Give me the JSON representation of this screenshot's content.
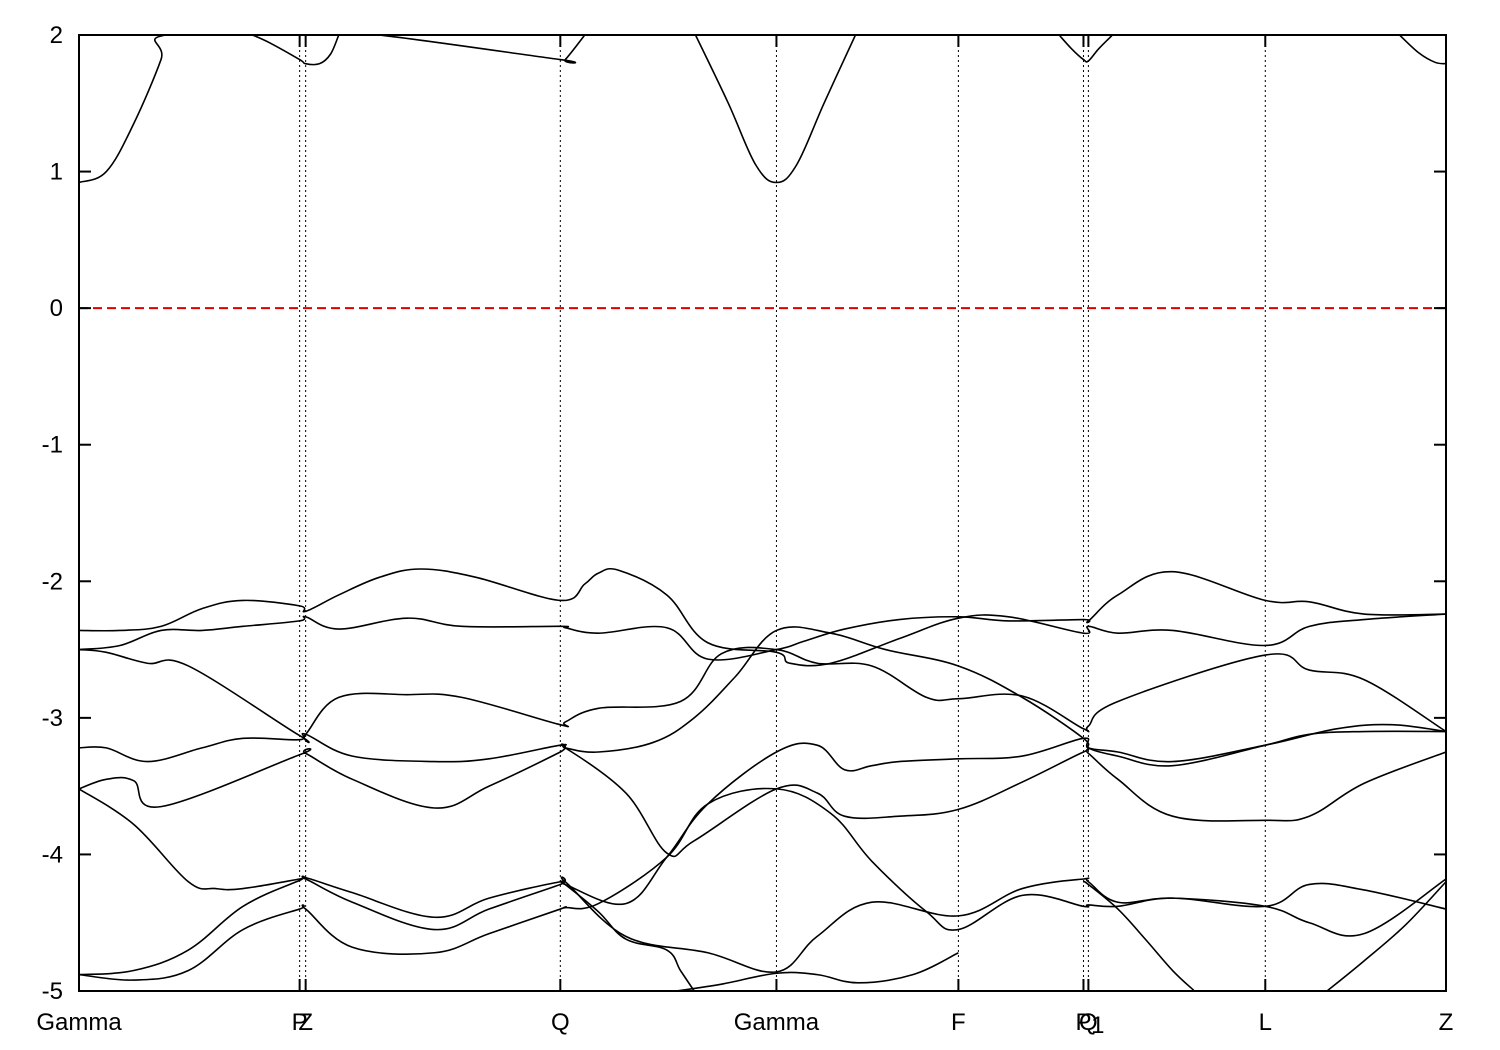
{
  "chart_data": {
    "type": "line",
    "title": "",
    "xlabel": "",
    "ylabel": "",
    "ylim": [
      -5,
      2
    ],
    "xlim": [
      0,
      1
    ],
    "grid": false,
    "yticks": [
      {
        "value": 2,
        "label": "2"
      },
      {
        "value": 1,
        "label": "1"
      },
      {
        "value": 0,
        "label": "0"
      },
      {
        "value": -1,
        "label": "-1"
      },
      {
        "value": -2,
        "label": "-2"
      },
      {
        "value": -3,
        "label": "-3"
      },
      {
        "value": -4,
        "label": "-4"
      },
      {
        "value": -5,
        "label": "-5"
      }
    ],
    "kpoints": [
      {
        "x": 0.0,
        "label": "Gamma"
      },
      {
        "x": 0.1614,
        "label": "P"
      },
      {
        "x": 0.1658,
        "label": "Z"
      },
      {
        "x": 0.3521,
        "label": "Q"
      },
      {
        "x": 0.5102,
        "label": "Gamma"
      },
      {
        "x": 0.6433,
        "label": "F"
      },
      {
        "x": 0.7348,
        "label": "P"
      },
      {
        "x": 0.7384,
        "label": "Q"
      },
      {
        "x": 0.7409,
        "label": "1"
      },
      {
        "x": 0.8678,
        "label": "L"
      },
      {
        "x": 1.0,
        "label": "Z"
      }
    ],
    "reference_line": {
      "y": 0,
      "color": "#dd0000",
      "style": "dashed"
    },
    "line_color": "#000000",
    "series": [
      {
        "x": [
          0,
          0.02,
          0.04,
          0.06,
          0.0635,
          0.1614,
          0.1658,
          0.19,
          0.22,
          0.3521,
          0.3557,
          0.37
        ],
        "y": [
          0.92,
          1.0,
          1.35,
          1.82,
          2.0,
          2.0,
          2.0,
          2.0,
          2.0,
          1.82,
          1.82,
          2.0
        ]
      },
      {
        "x": [
          0.127,
          0.14,
          0.1614,
          0.1658,
          0.176,
          0.184,
          0.19
        ],
        "y": [
          2.0,
          1.94,
          1.82,
          1.79,
          1.79,
          1.86,
          2.0
        ]
      },
      {
        "x": [
          0.451,
          0.475,
          0.495,
          0.5102,
          0.525,
          0.545,
          0.568
        ],
        "y": [
          2.0,
          1.5,
          1.05,
          0.92,
          1.05,
          1.5,
          2.0
        ]
      },
      {
        "x": [
          0.717,
          0.726,
          0.7348,
          0.7384,
          0.746,
          0.756
        ],
        "y": [
          2.0,
          1.9,
          1.82,
          1.81,
          1.9,
          2.0
        ]
      },
      {
        "x": [
          0.966,
          0.98,
          0.992,
          1.0
        ],
        "y": [
          2.0,
          1.87,
          1.8,
          1.79
        ]
      },
      {
        "x": [
          0,
          0.03,
          0.06,
          0.09,
          0.12,
          0.1614,
          0.1658,
          0.19,
          0.22,
          0.25,
          0.29,
          0.3521,
          0.37,
          0.38,
          0.395,
          0.43,
          0.46,
          0.5102,
          0.52,
          0.55,
          0.6,
          0.6433,
          0.68,
          0.7348,
          0.7384,
          0.76,
          0.8,
          0.8678,
          0.9,
          0.94,
          1.0
        ],
        "y": [
          -2.36,
          -2.36,
          -2.33,
          -2.2,
          -2.14,
          -2.18,
          -2.22,
          -2.1,
          -1.97,
          -1.91,
          -1.97,
          -2.14,
          -2.02,
          -1.94,
          -1.92,
          -2.1,
          -2.45,
          -2.52,
          -2.6,
          -2.6,
          -2.42,
          -2.27,
          -2.26,
          -2.38,
          -2.33,
          -2.38,
          -2.36,
          -2.47,
          -2.33,
          -2.28,
          -2.24
        ]
      },
      {
        "x": [
          0,
          0.03,
          0.06,
          0.09,
          0.12,
          0.1614,
          0.1658,
          0.19,
          0.24,
          0.28,
          0.3521,
          0.3557,
          0.38,
          0.43,
          0.46,
          0.5102,
          0.53,
          0.56,
          0.6,
          0.6433,
          0.68,
          0.7348,
          0.7384,
          0.76,
          0.8,
          0.8678,
          0.9,
          0.94,
          1.0
        ],
        "y": [
          -2.5,
          -2.47,
          -2.36,
          -2.36,
          -2.33,
          -2.29,
          -2.26,
          -2.35,
          -2.27,
          -2.33,
          -2.33,
          -2.34,
          -2.38,
          -2.34,
          -2.57,
          -2.5,
          -2.44,
          -2.35,
          -2.28,
          -2.26,
          -2.29,
          -2.28,
          -2.29,
          -2.1,
          -1.93,
          -2.14,
          -2.15,
          -2.24,
          -2.24
        ]
      },
      {
        "x": [
          0,
          0.02,
          0.05,
          0.08,
          0.1614,
          0.1658,
          0.19,
          0.24,
          0.28,
          0.3521,
          0.3557,
          0.38,
          0.44,
          0.47,
          0.5102,
          0.54,
          0.58,
          0.62,
          0.6433,
          0.69,
          0.7348,
          0.7384,
          0.76,
          0.8678,
          0.9,
          0.94,
          1.0
        ],
        "y": [
          -2.5,
          -2.52,
          -2.6,
          -2.62,
          -3.13,
          -3.12,
          -2.85,
          -2.83,
          -2.85,
          -3.05,
          -3.03,
          -2.93,
          -2.88,
          -2.53,
          -2.5,
          -2.6,
          -2.62,
          -2.85,
          -2.86,
          -2.84,
          -3.08,
          -3.06,
          -2.88,
          -2.54,
          -2.65,
          -2.72,
          -3.1
        ]
      },
      {
        "x": [
          0,
          0.02,
          0.05,
          0.09,
          0.12,
          0.1614,
          0.1658,
          0.2,
          0.26,
          0.3,
          0.3521,
          0.3557,
          0.38,
          0.42,
          0.45,
          0.48,
          0.5102,
          0.55,
          0.59,
          0.6433,
          0.69,
          0.7348,
          0.7384,
          0.76,
          0.8,
          0.8678,
          0.92,
          0.96,
          1.0
        ],
        "y": [
          -3.22,
          -3.22,
          -3.32,
          -3.22,
          -3.15,
          -3.16,
          -3.12,
          -3.28,
          -3.32,
          -3.3,
          -3.2,
          -3.22,
          -3.25,
          -3.18,
          -3.0,
          -2.7,
          -2.36,
          -2.38,
          -2.5,
          -2.62,
          -2.85,
          -3.15,
          -3.22,
          -3.25,
          -3.32,
          -3.2,
          -3.08,
          -3.05,
          -3.1
        ]
      },
      {
        "x": [
          0,
          0.02,
          0.04,
          0.06,
          0.1614,
          0.1658,
          0.2,
          0.26,
          0.3,
          0.3521,
          0.3557,
          0.4,
          0.43,
          0.45,
          0.5102,
          0.54,
          0.56,
          0.6,
          0.6433,
          0.69,
          0.7348,
          0.7384,
          0.76,
          0.8,
          0.8678,
          0.9,
          0.94,
          1.0
        ],
        "y": [
          -3.52,
          -3.45,
          -3.46,
          -3.65,
          -3.27,
          -3.26,
          -3.45,
          -3.66,
          -3.5,
          -3.25,
          -3.22,
          -3.55,
          -3.99,
          -3.9,
          -3.52,
          -3.55,
          -3.72,
          -3.72,
          -3.67,
          -3.47,
          -3.25,
          -3.26,
          -3.45,
          -3.72,
          -3.75,
          -3.72,
          -3.48,
          -3.25
        ]
      },
      {
        "x": [
          0,
          0.04,
          0.08,
          0.1,
          0.12,
          0.1614,
          0.1658,
          0.2,
          0.26,
          0.3,
          0.3521,
          0.3557,
          0.4,
          0.43,
          0.46,
          0.5102,
          0.54,
          0.56,
          0.58,
          0.6,
          0.6433,
          0.69,
          0.7348,
          0.7384,
          0.76,
          0.8,
          0.8678,
          0.9,
          0.94,
          1.0
        ],
        "y": [
          -3.52,
          -3.78,
          -4.2,
          -4.25,
          -4.25,
          -4.18,
          -4.17,
          -4.28,
          -4.46,
          -4.32,
          -4.2,
          -4.22,
          -4.36,
          -4.02,
          -3.63,
          -3.25,
          -3.2,
          -3.38,
          -3.35,
          -3.32,
          -3.3,
          -3.28,
          -3.15,
          -3.22,
          -3.28,
          -3.35,
          -3.2,
          -3.12,
          -3.1,
          -3.1
        ]
      },
      {
        "x": [
          0,
          0.04,
          0.08,
          0.12,
          0.1614,
          0.1658,
          0.2,
          0.26,
          0.3,
          0.3521,
          0.3557,
          0.4,
          0.46,
          0.5102,
          0.54,
          0.58,
          0.6433,
          0.69,
          0.7348,
          0.7384,
          0.76,
          0.8,
          0.8678,
          0.9,
          0.94,
          1.0
        ],
        "y": [
          -4.88,
          -4.85,
          -4.7,
          -4.38,
          -4.19,
          -4.18,
          -4.35,
          -4.55,
          -4.4,
          -4.22,
          -4.2,
          -4.6,
          -4.72,
          -4.86,
          -4.6,
          -4.35,
          -4.45,
          -4.25,
          -4.18,
          -4.2,
          -4.35,
          -4.32,
          -4.38,
          -4.5,
          -4.58,
          -4.18
        ]
      },
      {
        "x": [
          0,
          0.04,
          0.08,
          0.12,
          0.1614,
          0.1658,
          0.2,
          0.26,
          0.3,
          0.3521,
          0.3557,
          0.38,
          0.43,
          0.46,
          0.5102,
          0.55,
          0.58,
          0.62,
          0.6433,
          0.69,
          0.7348,
          0.7384,
          0.76,
          0.8,
          0.8678,
          0.9,
          0.94,
          1.0
        ],
        "y": [
          -4.88,
          -4.92,
          -4.85,
          -4.55,
          -4.4,
          -4.4,
          -4.68,
          -4.72,
          -4.58,
          -4.4,
          -4.39,
          -4.36,
          -4.02,
          -3.63,
          -3.52,
          -3.7,
          -4.05,
          -4.42,
          -4.55,
          -4.3,
          -4.38,
          -4.37,
          -4.38,
          -4.32,
          -4.38,
          -4.22,
          -4.26,
          -4.4
        ]
      },
      {
        "x": [
          0.3521,
          0.3557,
          0.38,
          0.4,
          0.43,
          0.44,
          0.45
        ],
        "y": [
          -4.2,
          -4.22,
          -4.42,
          -4.62,
          -4.7,
          -4.85,
          -5.0
        ]
      },
      {
        "x": [
          0.7348,
          0.7384,
          0.76,
          0.78,
          0.8,
          0.816
        ],
        "y": [
          -4.2,
          -4.22,
          -4.4,
          -4.62,
          -4.85,
          -5.0
        ]
      },
      {
        "x": [
          0.913,
          0.94,
          0.97,
          1.0
        ],
        "y": [
          -5.0,
          -4.78,
          -4.52,
          -4.2
        ]
      },
      {
        "x": [
          0.437,
          0.47,
          0.5102,
          0.54,
          0.57,
          0.61,
          0.6433
        ],
        "y": [
          -5.0,
          -4.95,
          -4.87,
          -4.88,
          -4.94,
          -4.88,
          -4.72
        ]
      }
    ]
  }
}
